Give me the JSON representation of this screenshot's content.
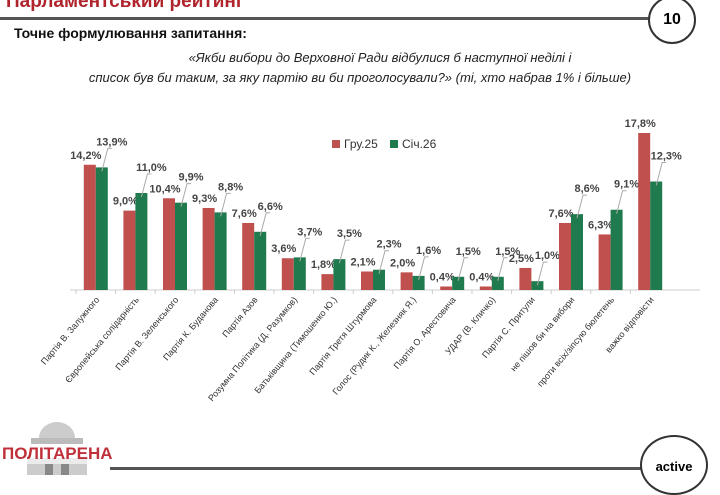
{
  "header": {
    "title": "Парламентський рейтинг",
    "page_number": "10"
  },
  "question": {
    "heading": "Точне формулювання запитання:",
    "line1": "«Якби вибори до Верховної Ради відбулися б наступної неділі і",
    "line2": "список був би таким, за яку партію ви би проголосували?» (ті, хто набрав 1% і більше)"
  },
  "footer": {
    "logo_text": "ПОЛІТАРЕНА",
    "badge": "active"
  },
  "chart_data": {
    "type": "bar",
    "title": "",
    "xlabel": "",
    "ylabel": "",
    "ylim": [
      0,
      18
    ],
    "grid": false,
    "legend": "top-center",
    "categories": [
      "Партія В. Залужного",
      "Європейська солідарність",
      "Партія В. Зеленського",
      "Партія К. Буданова",
      "Партія Азов",
      "Розумна Політика (Д. Разумков)",
      "Батьківщина (Тимошенко Ю.)",
      "Партія Третя Штурмова",
      "Голос (Рудик К., Железняк Я.)",
      "Партія О. Арестовича",
      "УДАР (В. Кличко)",
      "Партія С. Притули",
      "не пішов би на вибори",
      "проти всіх/зіпсую бюлетень",
      "важко відповісти"
    ],
    "series": [
      {
        "name": "Гру.25",
        "color": "#c0504d",
        "values": [
          14.2,
          9.0,
          10.4,
          9.3,
          7.6,
          3.6,
          1.8,
          2.1,
          2.0,
          0.4,
          0.4,
          2.5,
          7.6,
          6.3,
          17.8
        ],
        "labels": [
          "14,2%",
          "9,0%",
          "10,4%",
          "9,3%",
          "7,6%",
          "3,6%",
          "1,8%",
          "2,1%",
          "2,0%",
          "0,4%",
          "0,4%",
          "2,5%",
          "7,6%",
          "6,3%",
          "17,8%"
        ]
      },
      {
        "name": "Січ.26",
        "color": "#1f7a4d",
        "values": [
          13.9,
          11.0,
          9.9,
          8.8,
          6.6,
          3.7,
          3.5,
          2.3,
          1.6,
          1.5,
          1.5,
          1.0,
          8.6,
          9.1,
          12.3
        ],
        "labels": [
          "13,9%",
          "11,0%",
          "9,9%",
          "8,8%",
          "6,6%",
          "3,7%",
          "3,5%",
          "2,3%",
          "1,6%",
          "1,5%",
          "1,5%",
          "1,0%",
          "8,6%",
          "9,1%",
          "12,3%"
        ]
      }
    ]
  }
}
